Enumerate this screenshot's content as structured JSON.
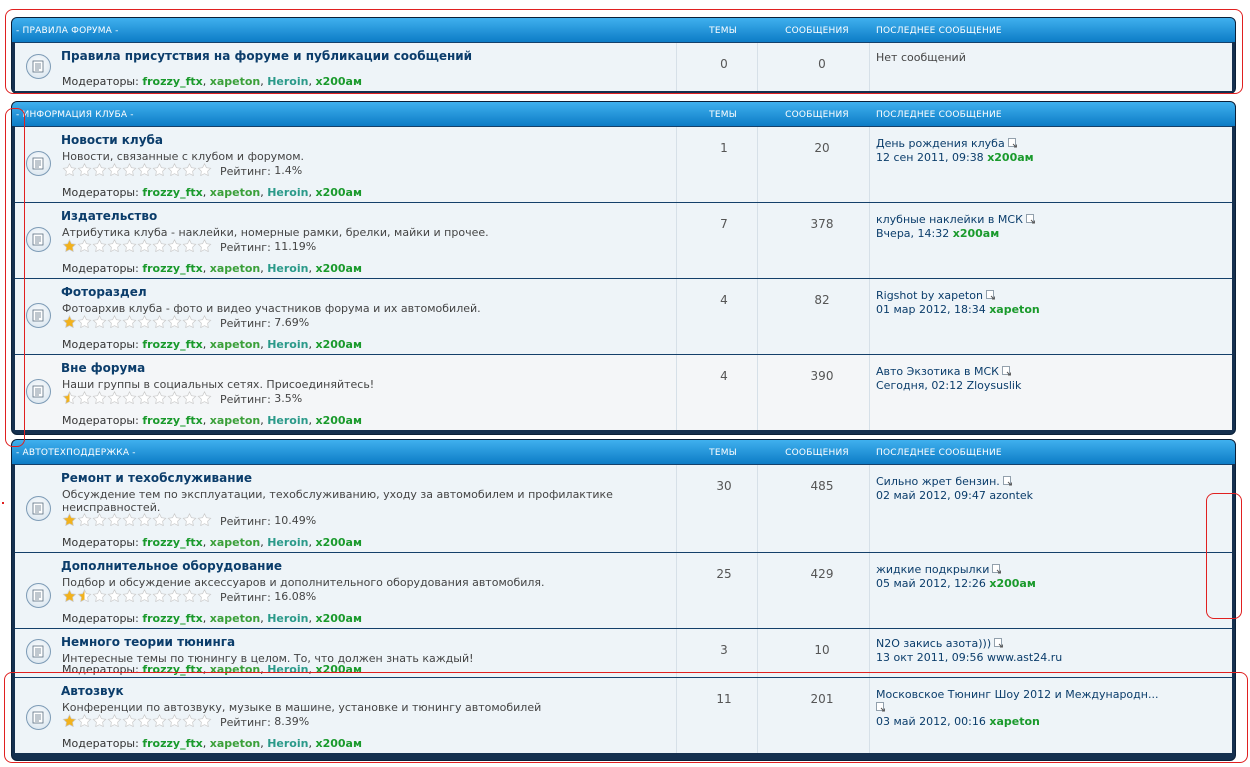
{
  "columns": {
    "topics": "ТЕМЫ",
    "posts": "СООБЩЕНИЯ",
    "last": "ПОСЛЕДНЕЕ СООБЩЕНИЕ"
  },
  "mods_label": "Модераторы:",
  "moderators": [
    "frozzy_ftx",
    "xapeton",
    "Heroin",
    "x200ам"
  ],
  "rating_label": "Рейтинг:",
  "categories": [
    {
      "title": "- ПРАВИЛА ФОРУМА -",
      "forums": [
        {
          "title": "Правила присутствия на форуме и публикации сообщений",
          "desc": "",
          "rating_stars": 0,
          "rating": "",
          "topics": "0",
          "posts": "0",
          "last_title": "Нет сообщений",
          "last_date": "",
          "last_user": ""
        }
      ]
    },
    {
      "title": "- ИНФОРМАЦИЯ КЛУБА -",
      "forums": [
        {
          "title": "Новости клуба",
          "desc": "Новости, связанные с клубом и форумом.",
          "rating_stars": 0,
          "rating": "1.4%",
          "topics": "1",
          "posts": "20",
          "last_title": "День рождения клуба",
          "last_date": "12 сен 2011, 09:38",
          "last_user": "x200ам"
        },
        {
          "title": "Издательство",
          "desc": "Атрибутика клуба - наклейки, номерные рамки, брелки, майки и прочее.",
          "rating_stars": 1,
          "rating": "11.19%",
          "topics": "7",
          "posts": "378",
          "last_title": "клубные наклейки в МСК",
          "last_date": "Вчера, 14:32",
          "last_user": "x200ам"
        },
        {
          "title": "Фотораздел",
          "desc": "Фотоархив клуба - фото и видео участников форума и их автомобилей.",
          "rating_stars": 1,
          "rating": "7.69%",
          "topics": "4",
          "posts": "82",
          "last_title": "Rigshot by xapeton",
          "last_date": "01 мар 2012, 18:34",
          "last_user": "xapeton"
        },
        {
          "title": "Вне форума",
          "desc": "Наши группы в социальных сетях. Присоединяйтесь!",
          "rating_stars": 0.5,
          "rating": "3.5%",
          "topics": "4",
          "posts": "390",
          "last_title": "Авто Экзотика в МСК",
          "last_date": "Сегодня, 02:12",
          "last_user": "Zloysuslik"
        }
      ]
    },
    {
      "title": "- АВТОТЕХПОДДЕРЖКА -",
      "forums": [
        {
          "title": "Ремонт и техобслуживание",
          "desc": "Обсуждение тем по эксплуатации, техобслуживанию, уходу за автомобилем и профилактике неисправностей.",
          "rating_stars": 1,
          "rating": "10.49%",
          "topics": "30",
          "posts": "485",
          "last_title": "Сильно жрет бензин.",
          "last_date": "02 май 2012, 09:47",
          "last_user": "azontek"
        },
        {
          "title": "Дополнительное оборудование",
          "desc": "Подбор и обсуждение аксессуаров и дополнительного оборудования автомобиля.",
          "rating_stars": 1.5,
          "rating": "16.08%",
          "topics": "25",
          "posts": "429",
          "last_title": "жидкие подкрылки",
          "last_date": "05 май 2012, 12:26",
          "last_user": "x200ам"
        },
        {
          "title": "Немного теории тюнинга",
          "desc": "Интересные темы по тюнингу в целом. То, что должен знать каждый!",
          "rating_stars": 0,
          "rating": "",
          "topics": "3",
          "posts": "10",
          "last_title": "N2O закись азота)))",
          "last_date": "13 окт 2011, 09:56",
          "last_user": "www.ast24.ru"
        },
        {
          "title": "Автозвук",
          "desc": "Конференции по автозвуку, музыке в машине, установке и тюнингу автомобилей",
          "rating_stars": 1,
          "rating": "8.39%",
          "topics": "11",
          "posts": "201",
          "last_title": "Московское Тюнинг Шоу 2012 и Международн...",
          "last_date": "03 май 2012, 00:16",
          "last_user": "xapeton"
        }
      ]
    }
  ]
}
